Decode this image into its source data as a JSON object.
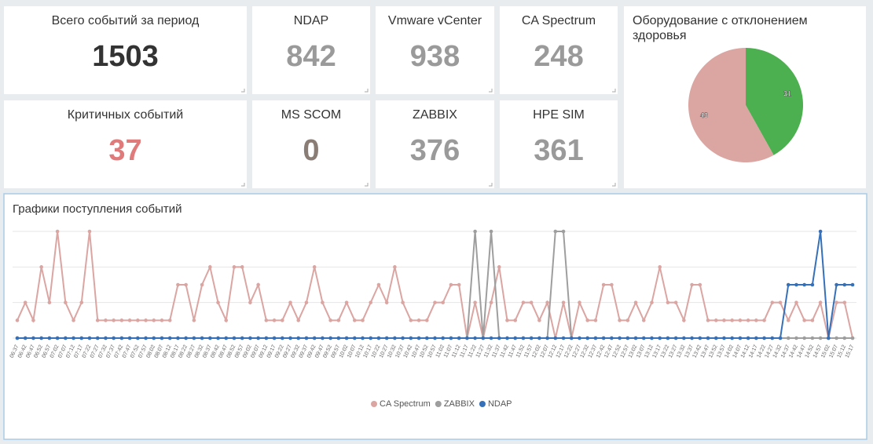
{
  "tiles": [
    {
      "title": "Всего событий за период",
      "value": 1503,
      "color": "#333333"
    },
    {
      "title": "NDAP",
      "value": 842,
      "color": "#9a9a9a"
    },
    {
      "title": "Vmware vCenter",
      "value": 938,
      "color": "#9a9a9a"
    },
    {
      "title": "CA Spectrum",
      "value": 248,
      "color": "#9a9a9a"
    },
    {
      "title": "Критичных событий",
      "value": 37,
      "color": "#e07b7b"
    },
    {
      "title": "MS SCOM",
      "value": 0,
      "color": "#8a7d76"
    },
    {
      "title": "ZABBIX",
      "value": 376,
      "color": "#9a9a9a"
    },
    {
      "title": "HPE SIM",
      "value": 361,
      "color": "#9a9a9a"
    }
  ],
  "chart_data": [
    {
      "type": "pie",
      "title": "Оборудование с отклонением здоровья",
      "values": [
        31,
        43
      ],
      "colors": [
        "#4caf50",
        "#dba5a2"
      ]
    },
    {
      "type": "line",
      "title": "Графики поступления событий",
      "legend": "bottom",
      "grid": true,
      "ylim": [
        0,
        6
      ],
      "yticks": [
        0,
        2,
        4,
        6
      ],
      "x": [
        "06:37",
        "06:42",
        "06:47",
        "06:52",
        "06:57",
        "07:02",
        "07:07",
        "07:12",
        "07:17",
        "07:22",
        "07:27",
        "07:32",
        "07:37",
        "07:42",
        "07:47",
        "07:52",
        "07:57",
        "08:02",
        "08:07",
        "08:12",
        "08:17",
        "08:22",
        "08:27",
        "08:32",
        "08:37",
        "08:42",
        "08:47",
        "08:52",
        "08:57",
        "09:02",
        "09:07",
        "09:12",
        "09:17",
        "09:22",
        "09:27",
        "09:32",
        "09:37",
        "09:42",
        "09:47",
        "09:52",
        "09:57",
        "10:02",
        "10:07",
        "10:12",
        "10:17",
        "10:22",
        "10:27",
        "10:32",
        "10:37",
        "10:42",
        "10:47",
        "10:52",
        "10:57",
        "11:02",
        "11:07",
        "11:12",
        "11:17",
        "11:22",
        "11:27",
        "11:32",
        "11:37",
        "11:42",
        "11:47",
        "11:52",
        "11:57",
        "12:02",
        "12:07",
        "12:12",
        "12:17",
        "12:22",
        "12:27",
        "12:32",
        "12:37",
        "12:42",
        "12:47",
        "12:52",
        "12:57",
        "13:02",
        "13:07",
        "13:12",
        "13:17",
        "13:22",
        "13:27",
        "13:32",
        "13:37",
        "13:42",
        "13:47",
        "13:52",
        "13:57",
        "14:02",
        "14:07",
        "14:12",
        "14:17",
        "14:22",
        "14:27",
        "14:32",
        "14:37",
        "14:42",
        "14:47",
        "14:52",
        "14:57",
        "15:02",
        "15:07",
        "15:12",
        "15:17"
      ],
      "series": [
        {
          "name": "CA Spectrum",
          "color": "#dba5a2",
          "values": [
            1,
            2,
            1,
            4,
            2,
            6,
            2,
            1,
            2,
            6,
            1,
            1,
            1,
            1,
            1,
            1,
            1,
            1,
            1,
            1,
            3,
            3,
            1,
            3,
            4,
            2,
            1,
            4,
            4,
            2,
            3,
            1,
            1,
            1,
            2,
            1,
            2,
            4,
            2,
            1,
            1,
            2,
            1,
            1,
            2,
            3,
            2,
            4,
            2,
            1,
            1,
            1,
            2,
            2,
            3,
            3,
            0,
            2,
            0,
            2,
            4,
            1,
            1,
            2,
            2,
            1,
            2,
            0,
            2,
            0,
            2,
            1,
            1,
            3,
            3,
            1,
            1,
            2,
            1,
            2,
            4,
            2,
            2,
            1,
            3,
            3,
            1,
            1,
            1,
            1,
            1,
            1,
            1,
            1,
            2,
            2,
            1,
            2,
            1,
            1,
            2,
            0,
            2,
            2,
            0
          ]
        },
        {
          "name": "ZABBIX",
          "color": "#9e9e9e",
          "values": [
            0,
            0,
            0,
            0,
            0,
            0,
            0,
            0,
            0,
            0,
            0,
            0,
            0,
            0,
            0,
            0,
            0,
            0,
            0,
            0,
            0,
            0,
            0,
            0,
            0,
            0,
            0,
            0,
            0,
            0,
            0,
            0,
            0,
            0,
            0,
            0,
            0,
            0,
            0,
            0,
            0,
            0,
            0,
            0,
            0,
            0,
            0,
            0,
            0,
            0,
            0,
            0,
            0,
            0,
            0,
            0,
            0,
            6,
            0,
            6,
            0,
            0,
            0,
            0,
            0,
            0,
            0,
            6,
            6,
            0,
            0,
            0,
            0,
            0,
            0,
            0,
            0,
            0,
            0,
            0,
            0,
            0,
            0,
            0,
            0,
            0,
            0,
            0,
            0,
            0,
            0,
            0,
            0,
            0,
            0,
            0,
            0,
            0,
            0,
            0,
            0,
            0,
            0,
            0,
            0
          ]
        },
        {
          "name": "NDAP",
          "color": "#3570b8",
          "values": [
            0,
            0,
            0,
            0,
            0,
            0,
            0,
            0,
            0,
            0,
            0,
            0,
            0,
            0,
            0,
            0,
            0,
            0,
            0,
            0,
            0,
            0,
            0,
            0,
            0,
            0,
            0,
            0,
            0,
            0,
            0,
            0,
            0,
            0,
            0,
            0,
            0,
            0,
            0,
            0,
            0,
            0,
            0,
            0,
            0,
            0,
            0,
            0,
            0,
            0,
            0,
            0,
            0,
            0,
            0,
            0,
            0,
            0,
            0,
            0,
            0,
            0,
            0,
            0,
            0,
            0,
            0,
            0,
            0,
            0,
            0,
            0,
            0,
            0,
            0,
            0,
            0,
            0,
            0,
            0,
            0,
            0,
            0,
            0,
            0,
            0,
            0,
            0,
            0,
            0,
            0,
            0,
            0,
            0,
            0,
            0,
            3,
            3,
            3,
            3,
            6,
            0,
            3,
            3,
            3
          ]
        }
      ]
    }
  ]
}
